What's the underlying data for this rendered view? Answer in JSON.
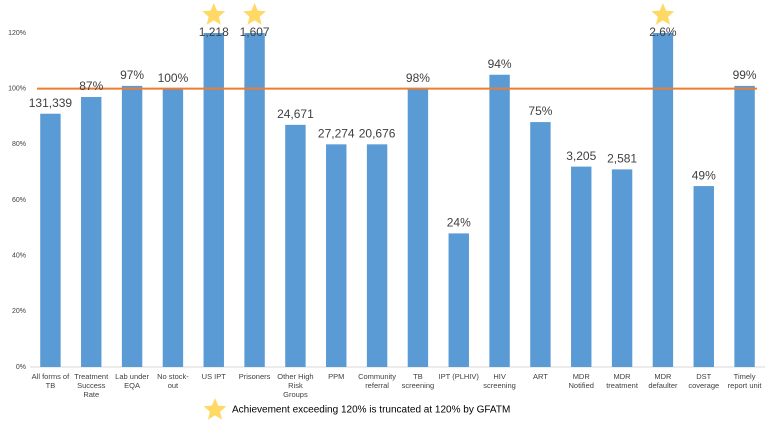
{
  "chart_data": {
    "type": "bar",
    "categories": [
      "All forms of TB",
      "Treatment Success Rate",
      "Lab under EQA",
      "No stock-out",
      "US IPT",
      "Prisoners",
      "Other High Risk Groups",
      "PPM",
      "Community referral",
      "TB screening",
      "IPT (PLHIV)",
      "HIV screening",
      "ART",
      "MDR Notified",
      "MDR treatment",
      "MDR defaulter",
      "DST coverage",
      "Timely report unit"
    ],
    "values": [
      91,
      97,
      101,
      100,
      120,
      120,
      87,
      80,
      80,
      100,
      48,
      105,
      88,
      72,
      71,
      120,
      65,
      101
    ],
    "annotations": [
      "131,339",
      "87%",
      "97%",
      "100%",
      "1,218",
      "1,607",
      "24,671",
      "27,274",
      "20,676",
      "98%",
      "24%",
      "94%",
      "75%",
      "3,205",
      "2,581",
      "2.6%",
      "49%",
      "99%"
    ],
    "color": "#5b9bd5",
    "ylim": [
      0,
      120
    ],
    "yticks": [
      {
        "value": 0,
        "label": "0%"
      },
      {
        "value": 20,
        "label": "20%"
      },
      {
        "value": 40,
        "label": "40%"
      },
      {
        "value": 60,
        "label": "60%"
      },
      {
        "value": 80,
        "label": "80%"
      },
      {
        "value": 100,
        "label": "100%"
      },
      {
        "value": 120,
        "label": "120%"
      }
    ],
    "reference_line": {
      "value": 100,
      "color": "#ed7d31"
    },
    "star_color": "#ffd966",
    "legend": "Achievement exceeding 120% is truncated at 120% by GFATM"
  }
}
